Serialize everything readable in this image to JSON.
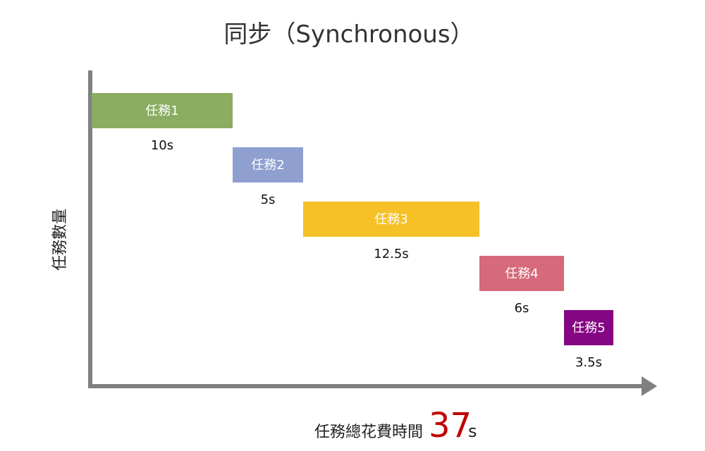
{
  "chart_data": {
    "type": "bar",
    "title": "同步（Synchronous）",
    "ylabel": "任務數量",
    "tasks": [
      {
        "name": "任務1",
        "duration": 10,
        "duration_label": "10s",
        "color": "#8aad62"
      },
      {
        "name": "任務2",
        "duration": 5,
        "duration_label": "5s",
        "color": "#8e9fd0"
      },
      {
        "name": "任務3",
        "duration": 12.5,
        "duration_label": "12.5s",
        "color": "#f5c127"
      },
      {
        "name": "任務4",
        "duration": 6,
        "duration_label": "6s",
        "color": "#d6697a"
      },
      {
        "name": "任務5",
        "duration": 3.5,
        "duration_label": "3.5s",
        "color": "#850683"
      }
    ],
    "total": {
      "label": "任務總花費時間",
      "value": "37",
      "unit": "s",
      "color": "#c00000"
    },
    "axis_color": "#808080"
  }
}
